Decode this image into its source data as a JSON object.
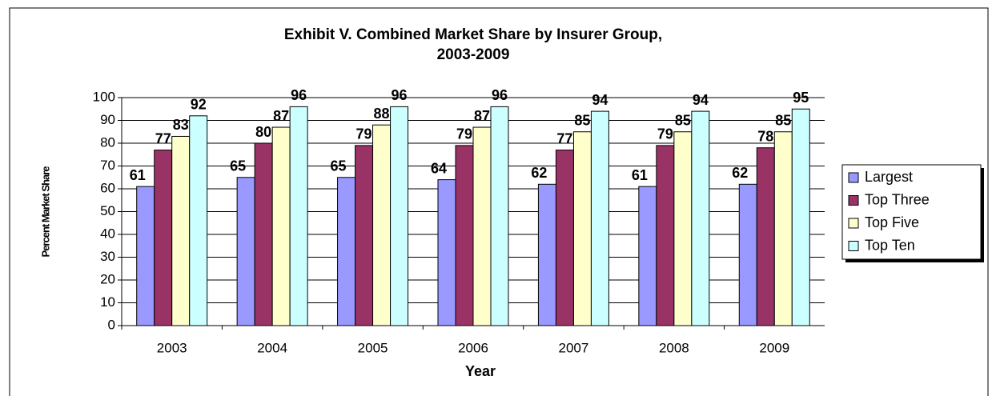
{
  "chart_data": {
    "type": "bar",
    "title": [
      "Exhibit V. Combined Market Share by Insurer Group,",
      "2003-2009"
    ],
    "x_label": "Year",
    "y_label": "Percent Market Share",
    "categories": [
      "2003",
      "2004",
      "2005",
      "2006",
      "2007",
      "2008",
      "2009"
    ],
    "series": [
      {
        "name": "Largest",
        "color": "#9999ff",
        "values": [
          61,
          65,
          65,
          64,
          62,
          61,
          62
        ]
      },
      {
        "name": "Top Three",
        "color": "#993366",
        "values": [
          77,
          80,
          79,
          79,
          77,
          79,
          78
        ]
      },
      {
        "name": "Top Five",
        "color": "#ffffcc",
        "values": [
          83,
          87,
          88,
          87,
          85,
          85,
          85
        ]
      },
      {
        "name": "Top Ten",
        "color": "#ccffff",
        "values": [
          92,
          96,
          96,
          96,
          94,
          94,
          95
        ]
      }
    ],
    "ylim": [
      0,
      100
    ],
    "yticks": [
      0,
      10,
      20,
      30,
      40,
      50,
      60,
      70,
      80,
      90,
      100
    ],
    "grid": true,
    "legend": "right"
  }
}
